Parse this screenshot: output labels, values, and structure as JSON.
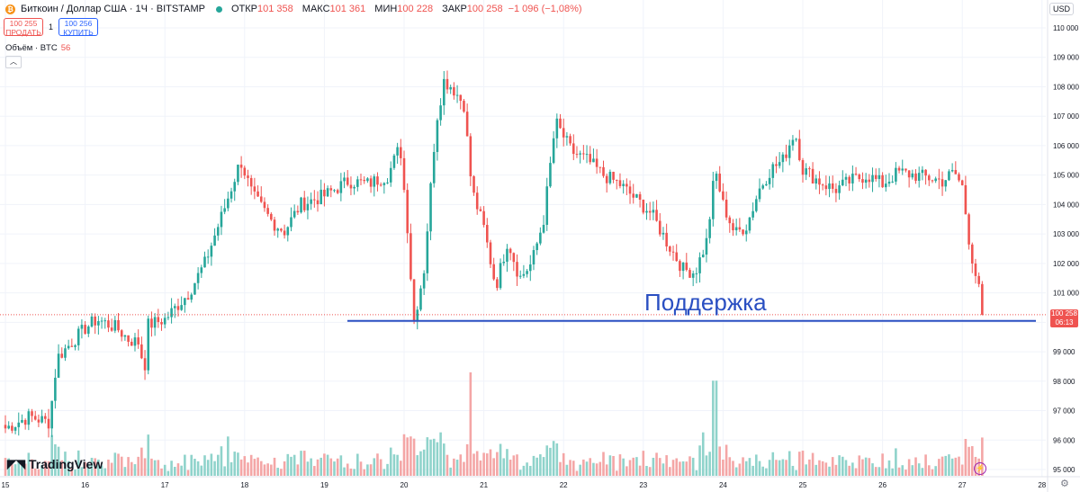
{
  "header": {
    "title": "Биткоин / Доллар США · 1Ч · BITSTAMP",
    "ohlc": [
      {
        "label": "ОТКР",
        "value": "101 358"
      },
      {
        "label": "МАКС",
        "value": "101 361"
      },
      {
        "label": "МИН",
        "value": "100 228"
      },
      {
        "label": "ЗАКР",
        "value": "100 258"
      }
    ],
    "change": "−1 096 (−1,08%)"
  },
  "trade": {
    "sell_price": "100 255",
    "sell_label": "ПРОДАТЬ",
    "spread": "1",
    "buy_price": "100 256",
    "buy_label": "КУПИТЬ"
  },
  "volume_legend": {
    "label": "Объём · BTC",
    "value": "56"
  },
  "currency": "USD",
  "last_price": {
    "price": "100 258",
    "countdown": "06:13"
  },
  "annotation": "Поддержка",
  "branding": "TradingView",
  "colors": {
    "up": "#26a69a",
    "down": "#ef5350",
    "support": "#2a4fc2",
    "vol_up": "#8fd3cb",
    "vol_down": "#f4a6a6"
  },
  "chart_data": {
    "type": "candlestick",
    "symbol": "BTCUSD",
    "timeframe": "1Ч",
    "y_ticks": [
      95000,
      96000,
      97000,
      98000,
      99000,
      100000,
      101000,
      102000,
      103000,
      104000,
      105000,
      106000,
      107000,
      108000,
      109000,
      110000
    ],
    "y_tick_labels": [
      "95 000",
      "96 000",
      "97 000",
      "98 000",
      "99 000",
      "",
      "101 000",
      "102 000",
      "103 000",
      "104 000",
      "105 000",
      "106 000",
      "107 000",
      "108 000",
      "109 000",
      "110 000"
    ],
    "ylim": [
      94700,
      110200
    ],
    "x_ticks": [
      15,
      16,
      17,
      18,
      19,
      20,
      21,
      22,
      23,
      24,
      25,
      26,
      27,
      28
    ],
    "support_level": 100050,
    "current_price": 100258,
    "close_path": [
      {
        "day": 15.0,
        "price": 96400
      },
      {
        "day": 15.3,
        "price": 96800
      },
      {
        "day": 15.55,
        "price": 96600
      },
      {
        "day": 15.65,
        "price": 98800
      },
      {
        "day": 16.0,
        "price": 99800
      },
      {
        "day": 16.15,
        "price": 100100
      },
      {
        "day": 16.4,
        "price": 99800
      },
      {
        "day": 16.55,
        "price": 99400
      },
      {
        "day": 16.7,
        "price": 99300
      },
      {
        "day": 16.73,
        "price": 97700
      },
      {
        "day": 16.78,
        "price": 99900
      },
      {
        "day": 17.0,
        "price": 100100
      },
      {
        "day": 17.3,
        "price": 101000
      },
      {
        "day": 17.5,
        "price": 102000
      },
      {
        "day": 17.75,
        "price": 103900
      },
      {
        "day": 17.95,
        "price": 105500
      },
      {
        "day": 18.1,
        "price": 104300
      },
      {
        "day": 18.35,
        "price": 103400
      },
      {
        "day": 18.5,
        "price": 103100
      },
      {
        "day": 18.7,
        "price": 104000
      },
      {
        "day": 19.0,
        "price": 104300
      },
      {
        "day": 19.3,
        "price": 104800
      },
      {
        "day": 19.55,
        "price": 104700
      },
      {
        "day": 19.8,
        "price": 105000
      },
      {
        "day": 19.95,
        "price": 106000
      },
      {
        "day": 20.05,
        "price": 103000
      },
      {
        "day": 20.12,
        "price": 100000
      },
      {
        "day": 20.25,
        "price": 101800
      },
      {
        "day": 20.4,
        "price": 106800
      },
      {
        "day": 20.5,
        "price": 108200
      },
      {
        "day": 20.6,
        "price": 108000
      },
      {
        "day": 20.75,
        "price": 107400
      },
      {
        "day": 20.85,
        "price": 104500
      },
      {
        "day": 21.0,
        "price": 103200
      },
      {
        "day": 21.15,
        "price": 101200
      },
      {
        "day": 21.3,
        "price": 102800
      },
      {
        "day": 21.45,
        "price": 101500
      },
      {
        "day": 21.6,
        "price": 102000
      },
      {
        "day": 21.75,
        "price": 103500
      },
      {
        "day": 21.9,
        "price": 106800
      },
      {
        "day": 22.1,
        "price": 105800
      },
      {
        "day": 22.3,
        "price": 105500
      },
      {
        "day": 22.5,
        "price": 105000
      },
      {
        "day": 22.7,
        "price": 104700
      },
      {
        "day": 22.9,
        "price": 104200
      },
      {
        "day": 23.1,
        "price": 103700
      },
      {
        "day": 23.3,
        "price": 102700
      },
      {
        "day": 23.5,
        "price": 101800
      },
      {
        "day": 23.65,
        "price": 101700
      },
      {
        "day": 23.8,
        "price": 102800
      },
      {
        "day": 23.9,
        "price": 105200
      },
      {
        "day": 24.0,
        "price": 104000
      },
      {
        "day": 24.15,
        "price": 103000
      },
      {
        "day": 24.3,
        "price": 103300
      },
      {
        "day": 24.45,
        "price": 104500
      },
      {
        "day": 24.6,
        "price": 105200
      },
      {
        "day": 24.75,
        "price": 105500
      },
      {
        "day": 24.9,
        "price": 106500
      },
      {
        "day": 25.0,
        "price": 105200
      },
      {
        "day": 25.2,
        "price": 104800
      },
      {
        "day": 25.4,
        "price": 104500
      },
      {
        "day": 25.6,
        "price": 104800
      },
      {
        "day": 25.8,
        "price": 105000
      },
      {
        "day": 26.0,
        "price": 104700
      },
      {
        "day": 26.2,
        "price": 105100
      },
      {
        "day": 26.4,
        "price": 105000
      },
      {
        "day": 26.6,
        "price": 104900
      },
      {
        "day": 26.75,
        "price": 104800
      },
      {
        "day": 26.9,
        "price": 105100
      },
      {
        "day": 27.0,
        "price": 104600
      },
      {
        "day": 27.1,
        "price": 102500
      },
      {
        "day": 27.2,
        "price": 101200
      },
      {
        "day": 27.27,
        "price": 100258
      }
    ],
    "volume_spikes": [
      {
        "day": 20.85,
        "relative": 1.0
      },
      {
        "day": 23.9,
        "relative": 0.92
      },
      {
        "day": 17.8,
        "relative": 0.38
      },
      {
        "day": 20.45,
        "relative": 0.42
      },
      {
        "day": 23.75,
        "relative": 0.42
      },
      {
        "day": 27.1,
        "relative": 0.28
      }
    ]
  }
}
